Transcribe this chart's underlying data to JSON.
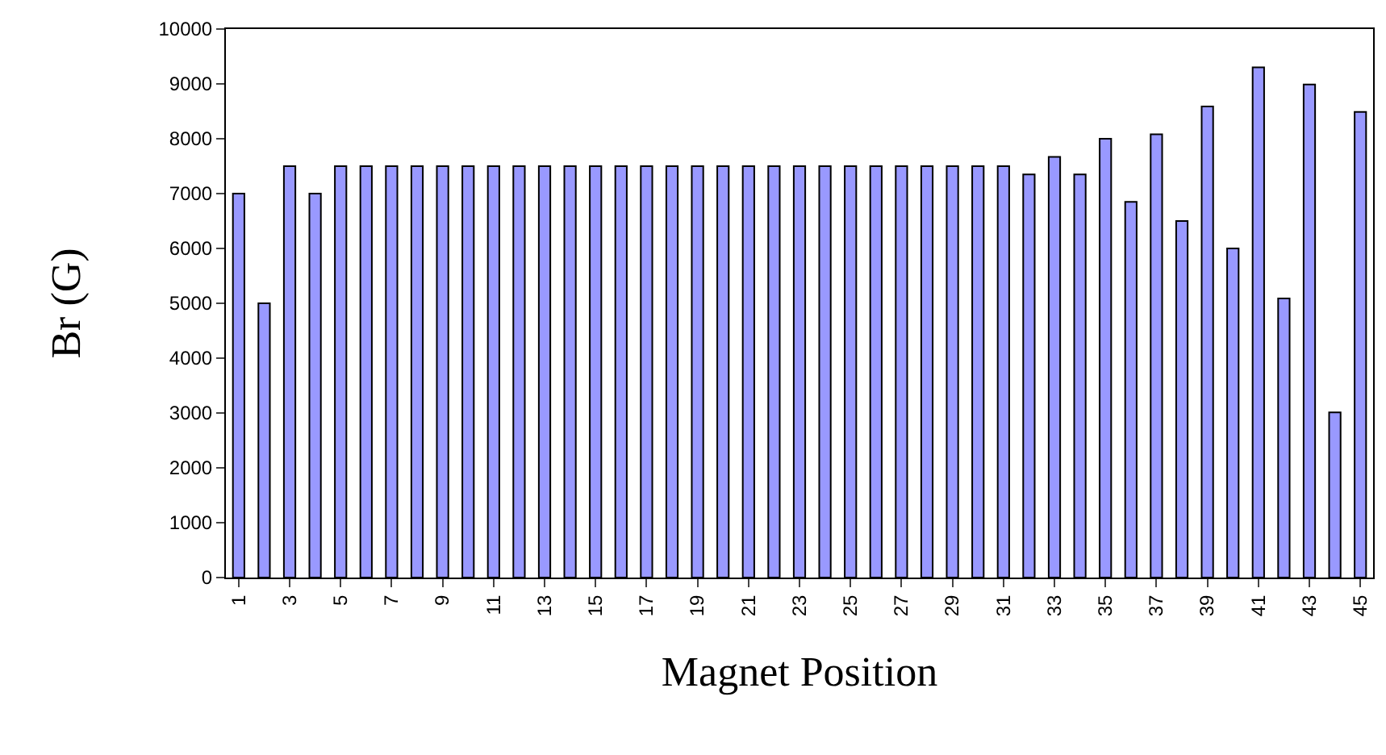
{
  "chart_data": {
    "type": "bar",
    "xlabel": "Magnet Position",
    "ylabel": "Br (G)",
    "categories": [
      "1",
      null,
      "3",
      null,
      "5",
      null,
      "7",
      null,
      "9",
      null,
      "11",
      null,
      "13",
      null,
      "15",
      null,
      "17",
      null,
      "19",
      null,
      "21",
      null,
      "23",
      null,
      "25",
      null,
      "27",
      null,
      "29",
      null,
      "31",
      null,
      "33",
      null,
      "35",
      null,
      "37",
      null,
      "39",
      null,
      "41",
      null,
      "43",
      null,
      "45"
    ],
    "values": [
      7000,
      5000,
      7500,
      7000,
      7500,
      7500,
      7500,
      7500,
      7500,
      7500,
      7500,
      7500,
      7500,
      7500,
      7500,
      7500,
      7500,
      7500,
      7500,
      7500,
      7500,
      7500,
      7500,
      7500,
      7500,
      7500,
      7500,
      7500,
      7500,
      7500,
      7500,
      7350,
      7670,
      7350,
      8000,
      6850,
      8080,
      6500,
      8590,
      6000,
      9300,
      5090,
      8990,
      3010,
      8490
    ],
    "color": "#9999ff",
    "ylim": [
      0,
      10000
    ],
    "yticks": [
      0,
      1000,
      2000,
      3000,
      4000,
      5000,
      6000,
      7000,
      8000,
      9000,
      10000
    ]
  }
}
